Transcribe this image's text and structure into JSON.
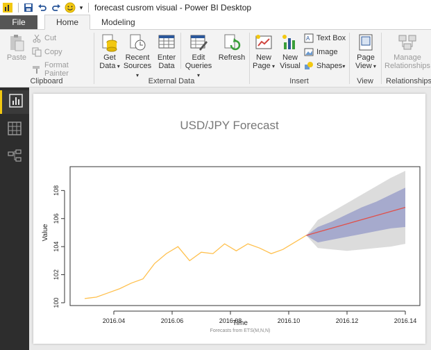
{
  "window": {
    "title": "forecast cusrom visual - Power BI Desktop",
    "quick_access": {
      "save": "save-icon",
      "undo": "undo-icon",
      "redo": "redo-icon",
      "smile": "smiley-icon",
      "customize": "chevron-down-icon"
    }
  },
  "tabs": [
    {
      "label": "File"
    },
    {
      "label": "Home"
    },
    {
      "label": "Modeling"
    }
  ],
  "ribbon": {
    "clipboard": {
      "label": "Clipboard",
      "paste": "Paste",
      "cut": "Cut",
      "copy": "Copy",
      "format_painter": "Format Painter"
    },
    "external_data": {
      "label": "External Data",
      "get_data": [
        "Get",
        "Data"
      ],
      "recent_sources": [
        "Recent",
        "Sources"
      ],
      "enter_data": [
        "Enter",
        "Data"
      ],
      "edit_queries": [
        "Edit",
        "Queries"
      ],
      "refresh": "Refresh"
    },
    "insert": {
      "label": "Insert",
      "new_page": [
        "New",
        "Page"
      ],
      "new_visual": [
        "New",
        "Visual"
      ],
      "text_box": "Text Box",
      "image": "Image",
      "shapes": "Shapes"
    },
    "view": {
      "label": "View",
      "page_view": [
        "Page",
        "View"
      ]
    },
    "relationships": {
      "label": "Relationships",
      "manage": [
        "Manage",
        "Relationships"
      ]
    }
  },
  "left_nav": [
    {
      "name": "report-view",
      "icon": "bar-chart-icon",
      "active": true
    },
    {
      "name": "data-view",
      "icon": "table-icon",
      "active": false
    },
    {
      "name": "relationships-view",
      "icon": "relationship-icon",
      "active": false
    }
  ],
  "colors": {
    "history_line": "#ffc04d",
    "forecast_line": "#e0504a",
    "band_80": "#a6aacd",
    "band_95": "#dcdcdc",
    "accent": "#f2c811"
  },
  "chart_data": {
    "type": "line",
    "title": "USD/JPY Forecast",
    "xlabel": "Time",
    "ylabel": "Value",
    "caption": "Forecasts from ETS(M,N,N)",
    "xlim": [
      2016.025,
      2016.145
    ],
    "ylim": [
      99.8,
      109.7
    ],
    "x_ticks": [
      2016.04,
      2016.06,
      2016.08,
      2016.1,
      2016.12,
      2016.14
    ],
    "x_tick_labels": [
      "2016.04",
      "2016.06",
      "2016.08",
      "2016.10",
      "2016.12",
      "2016.14"
    ],
    "y_ticks": [
      100,
      102,
      104,
      106,
      108
    ],
    "y_tick_labels": [
      "100",
      "102",
      "104",
      "106",
      "108"
    ],
    "series": [
      {
        "role": "history",
        "x": [
          2016.03,
          2016.034,
          2016.038,
          2016.042,
          2016.046,
          2016.05,
          2016.054,
          2016.058,
          2016.062,
          2016.066,
          2016.07,
          2016.074,
          2016.078,
          2016.082,
          2016.086,
          2016.09,
          2016.094,
          2016.098,
          2016.102,
          2016.106
        ],
        "y": [
          100.3,
          100.4,
          100.7,
          101.0,
          101.4,
          101.7,
          102.8,
          103.5,
          104.0,
          103.0,
          103.6,
          103.5,
          104.2,
          103.7,
          104.2,
          103.9,
          103.5,
          103.8,
          104.3,
          104.8
        ]
      },
      {
        "role": "forecast",
        "x": [
          2016.106,
          2016.14
        ],
        "y": [
          104.8,
          106.8
        ]
      }
    ],
    "intervals": {
      "x": [
        2016.106,
        2016.11,
        2016.115,
        2016.12,
        2016.125,
        2016.13,
        2016.135,
        2016.14
      ],
      "lo95": [
        104.8,
        103.9,
        103.8,
        103.7,
        103.8,
        103.9,
        104.0,
        104.2
      ],
      "hi95": [
        104.8,
        105.9,
        106.5,
        107.1,
        107.7,
        108.3,
        108.9,
        109.4
      ],
      "lo80": [
        104.8,
        104.3,
        104.5,
        104.7,
        104.9,
        105.1,
        105.3,
        105.4
      ],
      "hi80": [
        104.8,
        105.4,
        105.8,
        106.3,
        106.8,
        107.2,
        107.7,
        108.2
      ]
    }
  }
}
